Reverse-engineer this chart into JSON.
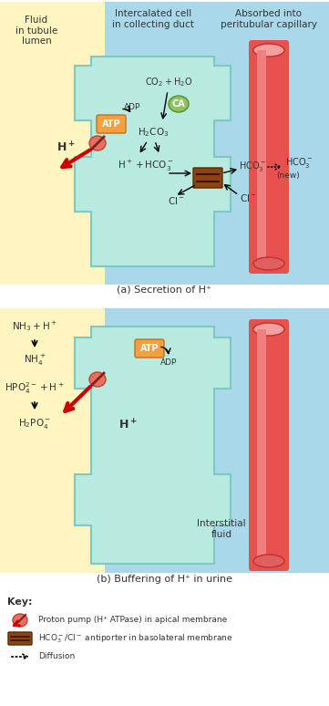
{
  "bg_white": "#ffffff",
  "yellow_bg": "#FFF5C0",
  "blue_bg": "#A8D8EA",
  "cell_color": "#B8EAE0",
  "cell_edge": "#7DC8C0",
  "capillary_red": "#E85050",
  "capillary_dark": "#C03030",
  "capillary_light": "#F08080",
  "arrow_red": "#CC0000",
  "antiporter_color": "#8B4513",
  "ca_green": "#90C060",
  "atp_orange": "#F5A040",
  "text_dark": "#333333",
  "title_a": "(a) Secretion of H⁺",
  "title_b": "(b) Buffering of H⁺ in urine",
  "header_fluid": "Fluid\nin tubule\nlumen",
  "header_cell": "Intercalated cell\nin collecting duct",
  "header_cap": "Absorbed into\nperitubular capillary",
  "key_pump": "Proton pump (H⁺ ATPase) in apical membrane",
  "key_antiporter": "HCO₃⁻/Cl⁻ antiporter in basolateral membrane",
  "key_diffusion": "Diffusion"
}
